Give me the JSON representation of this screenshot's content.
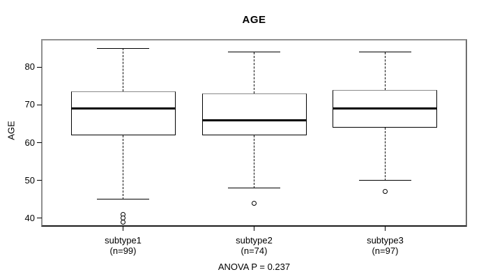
{
  "title": "AGE",
  "footer": "ANOVA P = 0.237",
  "colors": {
    "foreground": "#000000",
    "background": "#ffffff",
    "frame": "#909090"
  },
  "chart_data": {
    "type": "boxplot",
    "title": "AGE",
    "xlabel": "",
    "ylabel": "AGE",
    "ylim": [
      37.95,
      87.25
    ],
    "y_ticks": [
      40,
      50,
      60,
      70,
      80
    ],
    "grid": false,
    "annotation": "ANOVA P = 0.237",
    "groups": [
      {
        "label": "subtype1",
        "sublabel": "(n=99)",
        "n": 99,
        "whisker_low": 45,
        "q1": 62,
        "median": 69,
        "q3": 73.5,
        "whisker_high": 85,
        "outliers": [
          41,
          40,
          39
        ]
      },
      {
        "label": "subtype2",
        "sublabel": "(n=74)",
        "n": 74,
        "whisker_low": 48,
        "q1": 62,
        "median": 66,
        "q3": 73,
        "whisker_high": 84,
        "outliers": [
          44
        ]
      },
      {
        "label": "subtype3",
        "sublabel": "(n=97)",
        "n": 97,
        "whisker_low": 50,
        "q1": 64,
        "median": 69,
        "q3": 74,
        "whisker_high": 84,
        "outliers": [
          47
        ]
      }
    ]
  }
}
